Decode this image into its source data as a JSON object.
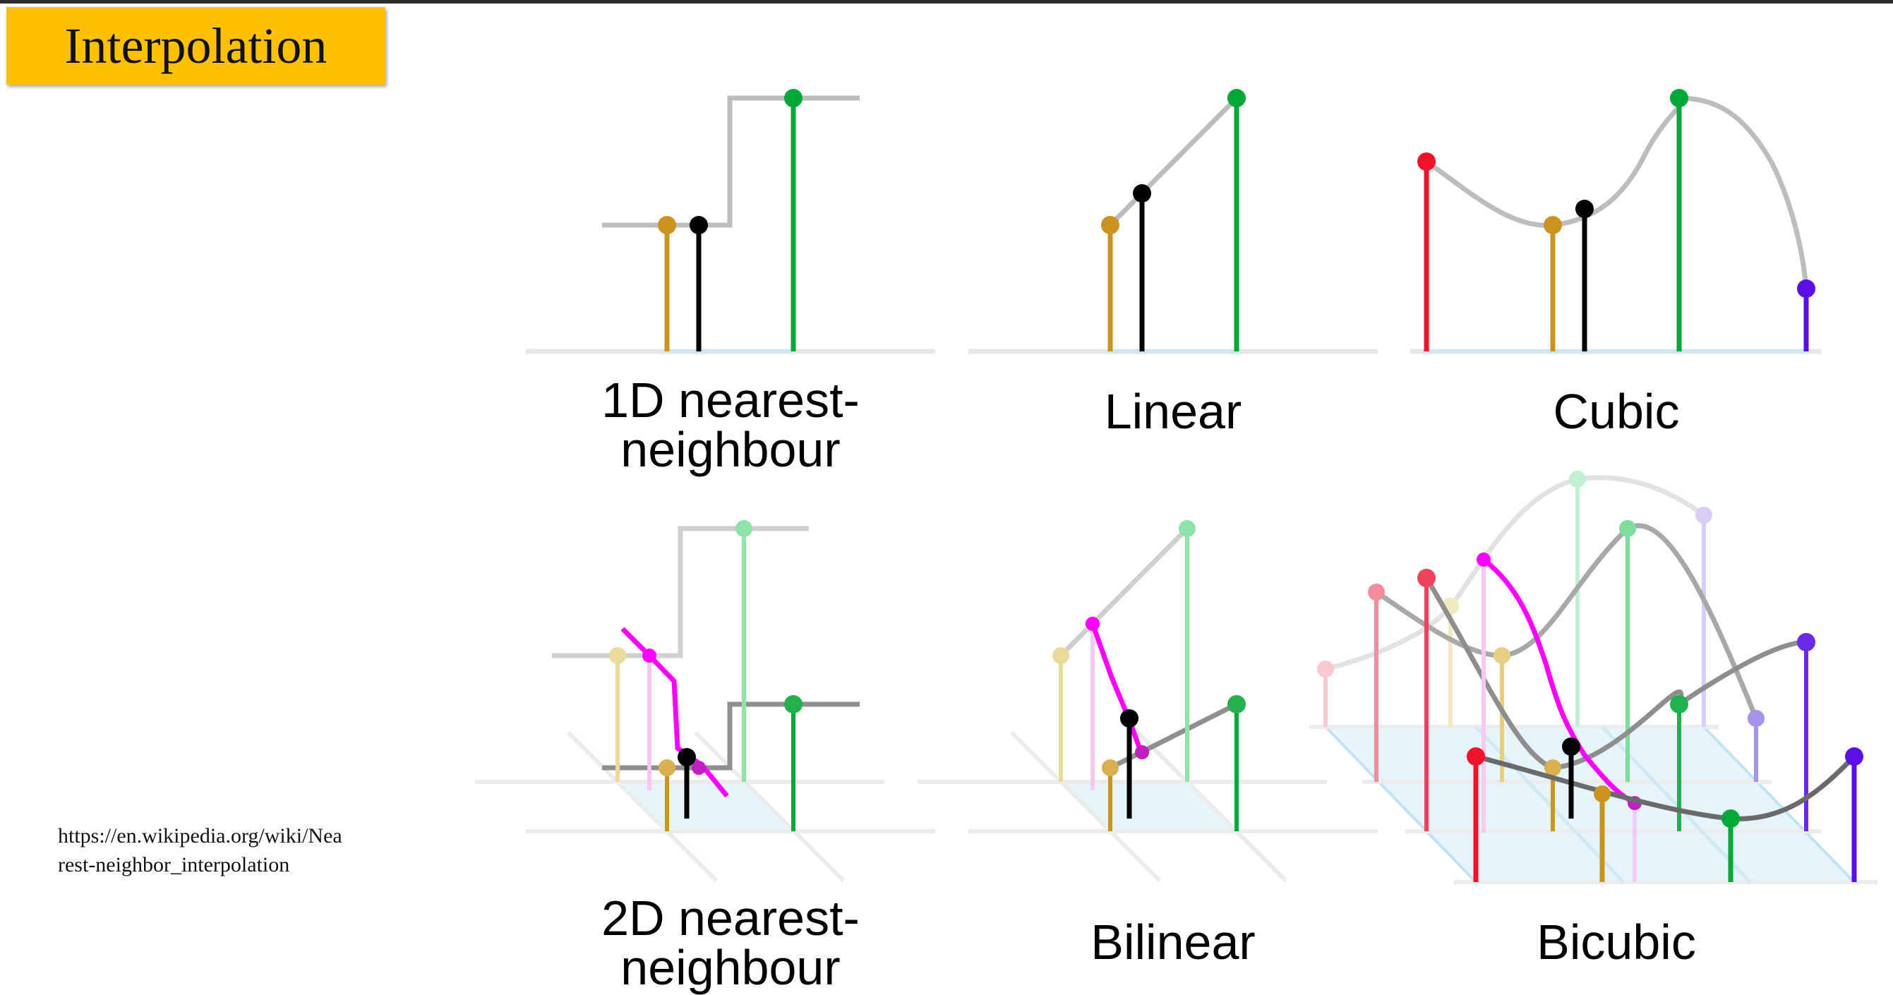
{
  "slide": {
    "title": "Interpolation",
    "source_line1": "https://en.wikipedia.org/wiki/Nea",
    "source_line2": "rest-neighbor_interpolation"
  },
  "panels": [
    {
      "id": "nn1d",
      "caption_line1": "1D nearest-",
      "caption_line2": "neighbour"
    },
    {
      "id": "linear",
      "caption_line1": "Linear",
      "caption_line2": ""
    },
    {
      "id": "cubic",
      "caption_line1": "Cubic",
      "caption_line2": ""
    },
    {
      "id": "nn2d",
      "caption_line1": "2D nearest-",
      "caption_line2": "neighbour"
    },
    {
      "id": "bilinear",
      "caption_line1": "Bilinear",
      "caption_line2": ""
    },
    {
      "id": "bicubic",
      "caption_line1": "Bicubic",
      "caption_line2": ""
    }
  ],
  "colors": {
    "sample_point_1": "#c9951e",
    "sample_point_2": "#00a838",
    "sample_point_left": "#f0122b",
    "sample_point_right": "#5b0fe6",
    "interpolated_point": "#000000",
    "interpolation_curve": "#bdbdbd",
    "second_row_curve": "#7c7c7c",
    "diagonal_curve": "#ff00ff",
    "grid_plane": "#d9f1fb"
  }
}
